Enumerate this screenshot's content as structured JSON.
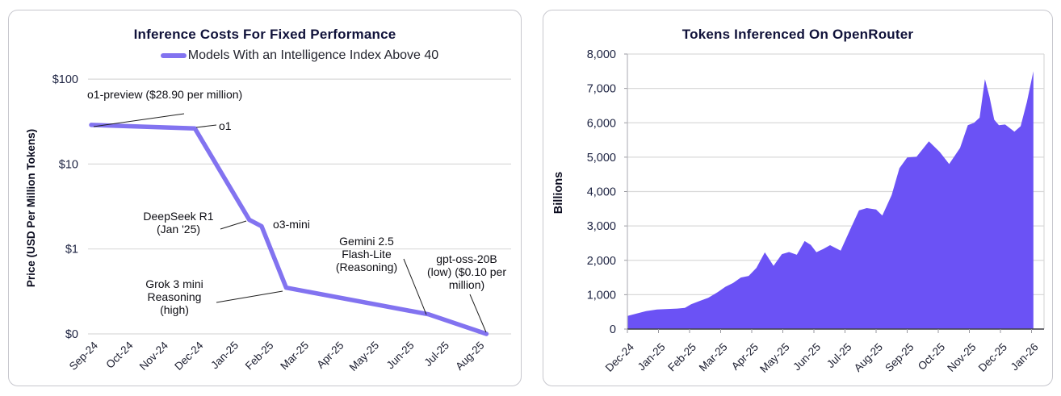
{
  "chart_data": [
    {
      "type": "line",
      "title": "Inference Costs For Fixed Performance",
      "legend": [
        "Models With an Intelligence Index Above 40"
      ],
      "legend_position": "top",
      "line_color": "#8273f0",
      "grid": "horizontal",
      "y_axis": {
        "label": "Price (USD Per Million Tokens)",
        "scale": "log",
        "tick_labels": [
          "$100",
          "$10",
          "$1",
          "$0"
        ],
        "tick_values": [
          100,
          10,
          1,
          0.1
        ]
      },
      "x_axis": {
        "tick_labels": [
          "Sep-24",
          "Oct-24",
          "Nov-24",
          "Dec-24",
          "Jan-25",
          "Feb-25",
          "Mar-25",
          "Apr-25",
          "May-25",
          "Jun-25",
          "Jul-25",
          "Aug-25"
        ]
      },
      "series": [
        {
          "name": "Models With an Intelligence Index Above 40",
          "color": "#8273f0",
          "points": [
            {
              "model": "o1-preview",
              "month": "Sep-24",
              "price_usd_per_million": 28.9,
              "t": 0
            },
            {
              "model": "o1",
              "month": "Dec-24",
              "price_usd_per_million": 26.3,
              "t": 2.95
            },
            {
              "model": "DeepSeek R1",
              "month": "Jan-25",
              "price_usd_per_million": 2.2,
              "t": 4.5
            },
            {
              "model": "o3-mini",
              "month": "Feb-25",
              "price_usd_per_million": 1.85,
              "t": 4.85
            },
            {
              "model": "Grok 3 mini Reasoning (high)",
              "month": "Feb-25",
              "price_usd_per_million": 0.35,
              "t": 5.55
            },
            {
              "model": "Gemini 2.5 Flash-Lite (Reasoning)",
              "month": "Jun-25",
              "price_usd_per_million": 0.17,
              "t": 9.6
            },
            {
              "model": "gpt-oss-20B (low)",
              "month": "Aug-25",
              "price_usd_per_million": 0.1,
              "t": 11.25
            }
          ]
        }
      ],
      "annotations": [
        {
          "text": "o1-preview ($28.90 per million)"
        },
        {
          "text": "o1"
        },
        {
          "text": "DeepSeek R1\n(Jan '25)"
        },
        {
          "text": "o3-mini"
        },
        {
          "text": "Grok 3 mini\nReasoning\n(high)"
        },
        {
          "text": "Gemini 2.5\nFlash-Lite\n(Reasoning)"
        },
        {
          "text": "gpt-oss-20B\n(low) ($0.10 per\nmillion)"
        }
      ]
    },
    {
      "type": "area",
      "title": "Tokens Inferenced On OpenRouter",
      "area_color": "#6b52f5",
      "grid": "horizontal",
      "y_axis": {
        "label": "Billions",
        "tick_labels": [
          "0",
          "1,000",
          "2,000",
          "3,000",
          "4,000",
          "5,000",
          "6,000",
          "7,000",
          "8,000"
        ],
        "tick_values": [
          0,
          1000,
          2000,
          3000,
          4000,
          5000,
          6000,
          7000,
          8000
        ],
        "ylim": [
          0,
          8000
        ]
      },
      "x_axis": {
        "tick_labels": [
          "Dec-24",
          "Jan-25",
          "Feb-25",
          "Mar-25",
          "Apr-25",
          "May-25",
          "Jun-25",
          "Jul-25",
          "Aug-25",
          "Sep-25",
          "Oct-25",
          "Nov-25",
          "Dec-25",
          "Jan-26"
        ]
      },
      "points_t_months_from_dec24_vs_billions": [
        [
          0,
          380
        ],
        [
          0.3,
          450
        ],
        [
          0.6,
          520
        ],
        [
          0.95,
          570
        ],
        [
          1.3,
          585
        ],
        [
          1.6,
          595
        ],
        [
          1.85,
          615
        ],
        [
          2.05,
          720
        ],
        [
          2.3,
          810
        ],
        [
          2.6,
          910
        ],
        [
          2.9,
          1070
        ],
        [
          3.15,
          1230
        ],
        [
          3.4,
          1340
        ],
        [
          3.65,
          1500
        ],
        [
          3.9,
          1545
        ],
        [
          4.15,
          1780
        ],
        [
          4.42,
          2230
        ],
        [
          4.7,
          1840
        ],
        [
          4.97,
          2180
        ],
        [
          5.2,
          2240
        ],
        [
          5.45,
          2160
        ],
        [
          5.7,
          2560
        ],
        [
          5.9,
          2450
        ],
        [
          6.08,
          2235
        ],
        [
          6.3,
          2330
        ],
        [
          6.52,
          2440
        ],
        [
          6.86,
          2280
        ],
        [
          7.17,
          2900
        ],
        [
          7.45,
          3450
        ],
        [
          7.7,
          3520
        ],
        [
          8.0,
          3480
        ],
        [
          8.2,
          3300
        ],
        [
          8.5,
          3900
        ],
        [
          8.75,
          4680
        ],
        [
          9.0,
          4990
        ],
        [
          9.3,
          5010
        ],
        [
          9.7,
          5460
        ],
        [
          10.05,
          5150
        ],
        [
          10.35,
          4800
        ],
        [
          10.7,
          5270
        ],
        [
          10.95,
          5930
        ],
        [
          11.15,
          6000
        ],
        [
          11.33,
          6150
        ],
        [
          11.5,
          7270
        ],
        [
          11.65,
          6750
        ],
        [
          11.8,
          6090
        ],
        [
          11.95,
          5930
        ],
        [
          12.15,
          5950
        ],
        [
          12.45,
          5740
        ],
        [
          12.65,
          5900
        ],
        [
          12.85,
          6600
        ],
        [
          13.06,
          7500
        ]
      ]
    }
  ]
}
